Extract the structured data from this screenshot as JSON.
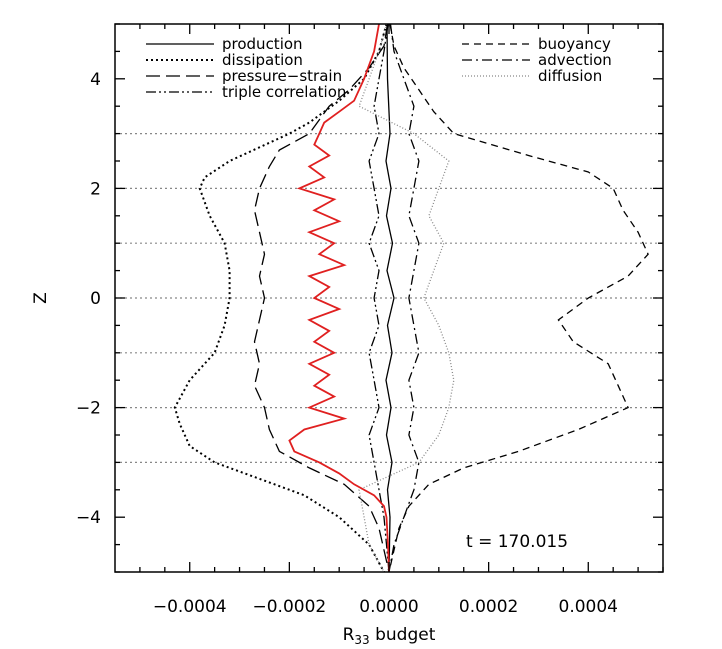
{
  "chart_data": {
    "type": "line",
    "xlabel_main": "R",
    "xlabel_sub": "33",
    "xlabel_rest": " budget",
    "ylabel": "Z",
    "xlim": [
      -0.00055,
      0.00055
    ],
    "ylim": [
      -5,
      5
    ],
    "x_ticks": [
      -0.0004,
      -0.0002,
      0.0,
      0.0002,
      0.0004
    ],
    "x_tick_labels": [
      "−0.0004",
      "−0.0002",
      "0.0000",
      "0.0002",
      "0.0004"
    ],
    "y_ticks": [
      -4,
      -2,
      0,
      2,
      4
    ],
    "y_tick_labels": [
      "−4",
      "−2",
      "0",
      "2",
      "4"
    ],
    "reference_lines_z": [
      3,
      2,
      1,
      0,
      -1,
      -2,
      -3
    ],
    "annotation": "t  =  170.015",
    "legend_left": [
      "production",
      "dissipation",
      "pressure−strain",
      "triple correlation"
    ],
    "legend_right": [
      "buoyancy",
      "advection",
      "diffusion"
    ],
    "series": [
      {
        "name": "production",
        "color": "#000000",
        "dash": "solid",
        "z": [
          5,
          4,
          3,
          2.5,
          2,
          1.5,
          1,
          0.5,
          0,
          -0.5,
          -1,
          -1.5,
          -2,
          -2.5,
          -3,
          -3.5,
          -4,
          -4.5,
          -5
        ],
        "values": [
          -4e-06,
          -3e-06,
          2e-06,
          -6e-06,
          4e-06,
          -5e-06,
          7e-06,
          -4e-06,
          1e-05,
          -3e-06,
          6e-06,
          -6e-06,
          4e-06,
          -5e-06,
          6e-06,
          -3e-06,
          2e-06,
          1e-06,
          0.0
        ]
      },
      {
        "name": "dissipation",
        "color": "#000000",
        "dash": "dotted",
        "z": [
          5,
          4.5,
          4,
          3.6,
          3.2,
          3,
          2.5,
          2.2,
          2,
          1.5,
          1,
          0.5,
          0,
          -0.5,
          -1,
          -1.5,
          -2,
          -2.3,
          -2.7,
          -3,
          -3.3,
          -3.6,
          -4,
          -4.5,
          -5
        ],
        "values": [
          -5e-06,
          -2e-05,
          -5e-05,
          -0.0001,
          -0.00016,
          -0.0002,
          -0.00032,
          -0.00037,
          -0.00038,
          -0.00036,
          -0.00033,
          -0.00032,
          -0.00032,
          -0.00033,
          -0.00035,
          -0.0004,
          -0.00043,
          -0.00042,
          -0.0004,
          -0.00035,
          -0.00026,
          -0.00017,
          -0.0001,
          -4e-05,
          -1e-05
        ]
      },
      {
        "name": "pressure−strain",
        "color": "#000000",
        "dash": "longdash",
        "z": [
          5,
          4.6,
          4.2,
          3.8,
          3.5,
          3,
          2.7,
          2.4,
          2,
          1.6,
          1.2,
          0.8,
          0.4,
          0,
          -0.4,
          -0.8,
          -1.2,
          -1.6,
          -2,
          -2.4,
          -2.8,
          -3.1,
          -3.4,
          -3.8,
          -4.2,
          -4.6,
          -5
        ],
        "values": [
          -3e-06,
          -1e-05,
          -4e-05,
          -8e-05,
          -0.00012,
          -0.00016,
          -0.00022,
          -0.00024,
          -0.00026,
          -0.00027,
          -0.00026,
          -0.00025,
          -0.00026,
          -0.00025,
          -0.00026,
          -0.00027,
          -0.00026,
          -0.00027,
          -0.00025,
          -0.00024,
          -0.00022,
          -0.00016,
          -9e-05,
          -4e-05,
          -2e-05,
          -1e-05,
          0.0
        ]
      },
      {
        "name": "triple correlation",
        "color": "#000000",
        "dash": "dashdotdot",
        "z": [
          5,
          4.5,
          4,
          3.5,
          3,
          2.5,
          2,
          1.5,
          1,
          0.5,
          0,
          -0.5,
          -1,
          -1.5,
          -2,
          -2.5,
          -3,
          -3.5,
          -4,
          -4.5,
          -5
        ],
        "values": [
          -2e-06,
          -1e-05,
          -2e-05,
          -3e-05,
          -2e-05,
          -4e-05,
          -3e-05,
          -2e-05,
          -4e-05,
          -2e-05,
          -3e-05,
          -2e-05,
          -4e-05,
          -3e-05,
          -2e-05,
          -4e-05,
          -3e-05,
          -2e-05,
          -1e-05,
          -5e-06,
          0.0
        ]
      },
      {
        "name": "buoyancy",
        "color": "#000000",
        "dash": "dashed",
        "z": [
          5,
          4.6,
          4.2,
          3.8,
          3.4,
          3,
          2.6,
          2.3,
          2,
          1.6,
          1.2,
          0.8,
          0.4,
          0,
          -0.4,
          -0.8,
          -1.2,
          -1.6,
          -2,
          -2.4,
          -2.8,
          -3.1,
          -3.4,
          -3.8,
          -4.2,
          -4.6,
          -5
        ],
        "values": [
          2e-06,
          1e-05,
          3e-05,
          6e-05,
          9e-05,
          0.00013,
          0.00028,
          0.0004,
          0.00045,
          0.00047,
          0.0005,
          0.00052,
          0.00048,
          0.0004,
          0.00034,
          0.00037,
          0.00044,
          0.00046,
          0.00048,
          0.00038,
          0.00026,
          0.00015,
          8e-05,
          4e-05,
          2e-05,
          1e-05,
          0.0
        ]
      },
      {
        "name": "advection",
        "color": "#000000",
        "dash": "dashdot",
        "z": [
          5,
          4.5,
          4,
          3.5,
          3,
          2.5,
          2,
          1.5,
          1,
          0.5,
          0,
          -0.5,
          -1,
          -1.5,
          -2,
          -2.5,
          -3,
          -3.5,
          -4,
          -4.5,
          -5
        ],
        "values": [
          3e-06,
          1e-05,
          3e-05,
          5e-05,
          4e-05,
          6e-05,
          5e-05,
          4e-05,
          6e-05,
          5e-05,
          4e-05,
          5e-05,
          6e-05,
          4e-05,
          5e-05,
          4e-05,
          6e-05,
          5e-05,
          3e-05,
          1e-05,
          0.0
        ]
      },
      {
        "name": "diffusion",
        "color": "#888888",
        "dash": "finedot",
        "z": [
          5,
          4.5,
          4,
          3.5,
          3,
          2.5,
          2,
          1.5,
          1,
          0.5,
          0,
          -0.5,
          -1,
          -1.5,
          -2,
          -2.5,
          -3,
          -3.5,
          -4,
          -4.5,
          -5
        ],
        "values": [
          -5e-06,
          -2e-05,
          -4e-05,
          -6e-05,
          5e-05,
          0.00012,
          0.0001,
          8e-05,
          0.00011,
          9e-05,
          7e-05,
          0.0001,
          0.00012,
          0.00013,
          0.00012,
          0.0001,
          6e-05,
          -6e-05,
          -5e-05,
          -4e-05,
          -1e-05
        ]
      },
      {
        "name": "",
        "color": "#e02020",
        "dash": "solid",
        "z": [
          5,
          4.5,
          4,
          3.6,
          3.4,
          3.2,
          3,
          2.8,
          2.6,
          2.4,
          2.2,
          2,
          1.8,
          1.6,
          1.4,
          1.2,
          1,
          0.8,
          0.6,
          0.4,
          0.2,
          0,
          -0.2,
          -0.4,
          -0.6,
          -0.8,
          -1,
          -1.2,
          -1.4,
          -1.6,
          -1.8,
          -2,
          -2.2,
          -2.4,
          -2.6,
          -2.8,
          -3,
          -3.2,
          -3.4,
          -3.6,
          -3.8,
          -4,
          -4.5,
          -5
        ],
        "values": [
          -2e-05,
          -3e-05,
          -5e-05,
          -7e-05,
          -0.0001,
          -0.00013,
          -0.00014,
          -0.00015,
          -0.00012,
          -0.00016,
          -0.00013,
          -0.00018,
          -0.00011,
          -0.00015,
          -0.0001,
          -0.00016,
          -0.00011,
          -0.00014,
          -9e-05,
          -0.00016,
          -0.00012,
          -0.00015,
          -0.0001,
          -0.00016,
          -0.00012,
          -0.00015,
          -0.00011,
          -0.00016,
          -0.00012,
          -0.00015,
          -0.00011,
          -0.00016,
          -9e-05,
          -0.00017,
          -0.0002,
          -0.00019,
          -0.00014,
          -0.0001,
          -7e-05,
          -3e-05,
          -1e-05,
          -5e-06,
          -2e-06,
          0.0
        ]
      }
    ]
  }
}
